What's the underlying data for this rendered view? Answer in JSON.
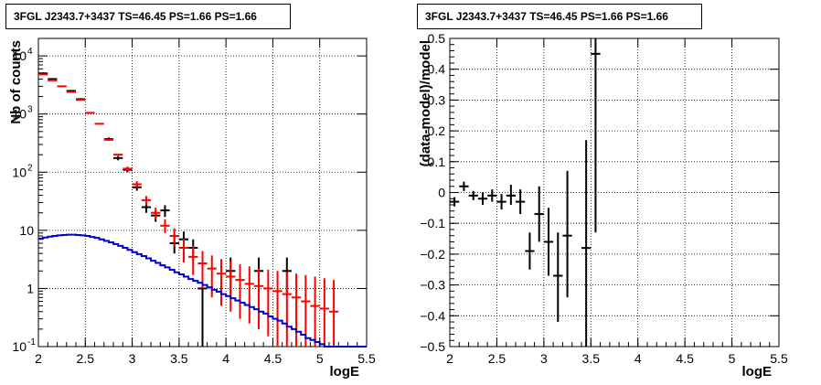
{
  "chart_data": [
    {
      "type": "scatter",
      "title": "3FGL J2343.7+3437 TS=46.45 PS=1.66 PS=1.66",
      "xlabel": "logE",
      "ylabel": "Nb of counts",
      "xlim": [
        2,
        5.5
      ],
      "ylim": [
        0.1,
        20000
      ],
      "ylog": true,
      "grid": true,
      "x_ticks": [
        "2",
        "2.5",
        "3",
        "3.5",
        "4",
        "4.5",
        "5",
        "5.5"
      ],
      "y_ticks": [
        {
          "v": 0.1,
          "label": "10",
          "sup": "-1"
        },
        {
          "v": 1,
          "label": "1",
          "sup": ""
        },
        {
          "v": 10,
          "label": "10",
          "sup": ""
        },
        {
          "v": 100,
          "label": "10",
          "sup": "2"
        },
        {
          "v": 1000,
          "label": "10",
          "sup": "3"
        },
        {
          "v": 10000,
          "label": "10",
          "sup": "4"
        }
      ],
      "series": [
        {
          "color": "#000000",
          "points": [
            {
              "x": 2.05,
              "y": 5000,
              "lo": 4800,
              "hi": 5200
            },
            {
              "x": 2.15,
              "y": 4000,
              "lo": 3850,
              "hi": 4150
            },
            {
              "x": 2.35,
              "y": 2500,
              "lo": 2400,
              "hi": 2600
            },
            {
              "x": 2.45,
              "y": 1800,
              "lo": 1720,
              "hi": 1880
            },
            {
              "x": 2.75,
              "y": 370,
              "lo": 345,
              "hi": 395
            },
            {
              "x": 2.85,
              "y": 175,
              "lo": 160,
              "hi": 190
            },
            {
              "x": 2.95,
              "y": 110,
              "lo": 100,
              "hi": 120
            },
            {
              "x": 3.05,
              "y": 55,
              "lo": 48,
              "hi": 62
            },
            {
              "x": 3.15,
              "y": 25,
              "lo": 20,
              "hi": 30
            },
            {
              "x": 3.25,
              "y": 18,
              "lo": 14,
              "hi": 22
            },
            {
              "x": 3.35,
              "y": 22,
              "lo": 17,
              "hi": 27
            },
            {
              "x": 3.45,
              "y": 6,
              "lo": 4,
              "hi": 8.5
            },
            {
              "x": 3.55,
              "y": 7,
              "lo": 4.5,
              "hi": 9.5
            },
            {
              "x": 3.65,
              "y": 5,
              "lo": 3,
              "hi": 7
            },
            {
              "x": 3.75,
              "y": 1,
              "lo": 0.1,
              "hi": 2.3
            },
            {
              "x": 4.05,
              "y": 2,
              "lo": 0.8,
              "hi": 3.4
            },
            {
              "x": 4.35,
              "y": 2,
              "lo": 0.8,
              "hi": 3.4
            },
            {
              "x": 4.65,
              "y": 2,
              "lo": 0.8,
              "hi": 3.4
            }
          ]
        },
        {
          "color": "#ff0000",
          "points": [
            {
              "x": 2.05,
              "y": 4800,
              "lo": 4800,
              "hi": 4800
            },
            {
              "x": 2.15,
              "y": 3800,
              "lo": 3800,
              "hi": 3800
            },
            {
              "x": 2.25,
              "y": 3000,
              "lo": 3000,
              "hi": 3000
            },
            {
              "x": 2.35,
              "y": 2400,
              "lo": 2400,
              "hi": 2400
            },
            {
              "x": 2.45,
              "y": 1750,
              "lo": 1750,
              "hi": 1750
            },
            {
              "x": 2.55,
              "y": 1050,
              "lo": 1050,
              "hi": 1050
            },
            {
              "x": 2.65,
              "y": 680,
              "lo": 680,
              "hi": 680
            },
            {
              "x": 2.75,
              "y": 360,
              "lo": 360,
              "hi": 360
            },
            {
              "x": 2.85,
              "y": 200,
              "lo": 200,
              "hi": 200
            },
            {
              "x": 2.95,
              "y": 115,
              "lo": 105,
              "hi": 125
            },
            {
              "x": 3.05,
              "y": 62,
              "lo": 54,
              "hi": 70
            },
            {
              "x": 3.15,
              "y": 33,
              "lo": 27,
              "hi": 39
            },
            {
              "x": 3.25,
              "y": 20,
              "lo": 15.5,
              "hi": 24.5
            },
            {
              "x": 3.35,
              "y": 12,
              "lo": 9,
              "hi": 15.5
            },
            {
              "x": 3.45,
              "y": 8,
              "lo": 5.3,
              "hi": 10.8
            },
            {
              "x": 3.55,
              "y": 5,
              "lo": 2.8,
              "hi": 7.2
            },
            {
              "x": 3.65,
              "y": 3.5,
              "lo": 1.7,
              "hi": 5.4
            },
            {
              "x": 3.75,
              "y": 2.7,
              "lo": 1.0,
              "hi": 4.4
            },
            {
              "x": 3.85,
              "y": 2.2,
              "lo": 0.7,
              "hi": 3.7
            },
            {
              "x": 3.95,
              "y": 1.8,
              "lo": 0.5,
              "hi": 3.2
            },
            {
              "x": 4.05,
              "y": 1.6,
              "lo": 0.4,
              "hi": 2.9
            },
            {
              "x": 4.15,
              "y": 1.4,
              "lo": 0.3,
              "hi": 2.6
            },
            {
              "x": 4.25,
              "y": 1.2,
              "lo": 0.25,
              "hi": 2.4
            },
            {
              "x": 4.35,
              "y": 1.1,
              "lo": 0.2,
              "hi": 2.2
            },
            {
              "x": 4.45,
              "y": 1.0,
              "lo": 0.15,
              "hi": 2.1
            },
            {
              "x": 4.55,
              "y": 0.9,
              "lo": 0.1,
              "hi": 2.0
            },
            {
              "x": 4.65,
              "y": 0.8,
              "lo": 0.1,
              "hi": 1.9
            },
            {
              "x": 4.75,
              "y": 0.7,
              "lo": 0.1,
              "hi": 1.8
            },
            {
              "x": 4.85,
              "y": 0.6,
              "lo": 0.1,
              "hi": 1.7
            },
            {
              "x": 4.95,
              "y": 0.5,
              "lo": 0.1,
              "hi": 1.6
            },
            {
              "x": 5.05,
              "y": 0.45,
              "lo": 0.1,
              "hi": 1.5
            },
            {
              "x": 5.15,
              "y": 0.4,
              "lo": 0.1,
              "hi": 1.4
            }
          ]
        },
        {
          "color": "#0000cc",
          "type": "step",
          "x": [
            2.0,
            2.05,
            2.1,
            2.15,
            2.2,
            2.25,
            2.3,
            2.35,
            2.4,
            2.45,
            2.5,
            2.55,
            2.6,
            2.65,
            2.7,
            2.75,
            2.8,
            2.85,
            2.9,
            2.95,
            3.0,
            3.05,
            3.1,
            3.15,
            3.2,
            3.25,
            3.3,
            3.35,
            3.4,
            3.45,
            3.5,
            3.55,
            3.6,
            3.65,
            3.7,
            3.75,
            3.8,
            3.85,
            3.9,
            3.95,
            4.0,
            4.05,
            4.1,
            4.15,
            4.2,
            4.25,
            4.3,
            4.35,
            4.4,
            4.45,
            4.5,
            4.55,
            4.6,
            4.65,
            4.7,
            4.75,
            4.8,
            4.85,
            4.9,
            4.95,
            5.0,
            5.05,
            5.1,
            5.15,
            5.2,
            5.25,
            5.3,
            5.35,
            5.4,
            5.45
          ],
          "y": [
            7.2,
            7.5,
            7.8,
            8.0,
            8.2,
            8.3,
            8.4,
            8.4,
            8.3,
            8.2,
            8.0,
            7.7,
            7.4,
            7.0,
            6.6,
            6.2,
            5.8,
            5.4,
            5.0,
            4.6,
            4.2,
            3.9,
            3.6,
            3.3,
            3.0,
            2.75,
            2.5,
            2.3,
            2.1,
            1.9,
            1.75,
            1.6,
            1.45,
            1.35,
            1.25,
            1.15,
            1.05,
            0.95,
            0.88,
            0.8,
            0.74,
            0.68,
            0.62,
            0.57,
            0.52,
            0.48,
            0.44,
            0.4,
            0.37,
            0.33,
            0.3,
            0.28,
            0.25,
            0.22,
            0.2,
            0.18,
            0.16,
            0.14,
            0.13,
            0.12,
            0.11,
            0.1,
            0.1,
            0.1,
            0.1,
            0.1,
            0.1,
            0.1,
            0.1,
            0.1
          ]
        }
      ]
    },
    {
      "type": "scatter",
      "title": "3FGL J2343.7+3437 TS=46.45 PS=1.66 PS=1.66",
      "xlabel": "logE",
      "ylabel": "(data-model)/model",
      "xlim": [
        2,
        5.5
      ],
      "ylim": [
        -0.5,
        0.5
      ],
      "ylog": false,
      "grid": true,
      "x_ticks": [
        "2",
        "2.5",
        "3",
        "3.5",
        "4",
        "4.5",
        "5",
        "5.5"
      ],
      "y_ticks": [
        {
          "v": -0.5,
          "label": "−0.5"
        },
        {
          "v": -0.4,
          "label": "−0.4"
        },
        {
          "v": -0.3,
          "label": "−0.3"
        },
        {
          "v": -0.2,
          "label": "−0.2"
        },
        {
          "v": -0.1,
          "label": "−0.1"
        },
        {
          "v": 0,
          "label": "0"
        },
        {
          "v": 0.1,
          "label": "0.1"
        },
        {
          "v": 0.2,
          "label": "0.2"
        },
        {
          "v": 0.3,
          "label": "0.3"
        },
        {
          "v": 0.4,
          "label": "0.4"
        },
        {
          "v": 0.5,
          "label": "0.5"
        }
      ],
      "series": [
        {
          "color": "#000000",
          "points": [
            {
              "x": 2.05,
              "y": -0.03,
              "lo": -0.045,
              "hi": -0.015
            },
            {
              "x": 2.15,
              "y": 0.02,
              "lo": 0.005,
              "hi": 0.035
            },
            {
              "x": 2.25,
              "y": -0.01,
              "lo": -0.025,
              "hi": 0.005
            },
            {
              "x": 2.35,
              "y": -0.02,
              "lo": -0.04,
              "hi": 0.0
            },
            {
              "x": 2.45,
              "y": -0.01,
              "lo": -0.03,
              "hi": 0.01
            },
            {
              "x": 2.55,
              "y": -0.03,
              "lo": -0.055,
              "hi": -0.005
            },
            {
              "x": 2.65,
              "y": -0.01,
              "lo": -0.04,
              "hi": 0.025
            },
            {
              "x": 2.75,
              "y": -0.03,
              "lo": -0.07,
              "hi": 0.01
            },
            {
              "x": 2.85,
              "y": -0.19,
              "lo": -0.25,
              "hi": -0.13
            },
            {
              "x": 2.95,
              "y": -0.07,
              "lo": -0.16,
              "hi": 0.02
            },
            {
              "x": 3.05,
              "y": -0.16,
              "lo": -0.27,
              "hi": -0.05
            },
            {
              "x": 3.15,
              "y": -0.27,
              "lo": -0.42,
              "hi": -0.13
            },
            {
              "x": 3.25,
              "y": -0.14,
              "lo": -0.34,
              "hi": 0.07
            },
            {
              "x": 3.45,
              "y": -0.18,
              "lo": -0.5,
              "hi": 0.17
            },
            {
              "x": 3.55,
              "y": 0.45,
              "lo": -0.13,
              "hi": 0.5
            }
          ]
        }
      ]
    }
  ]
}
